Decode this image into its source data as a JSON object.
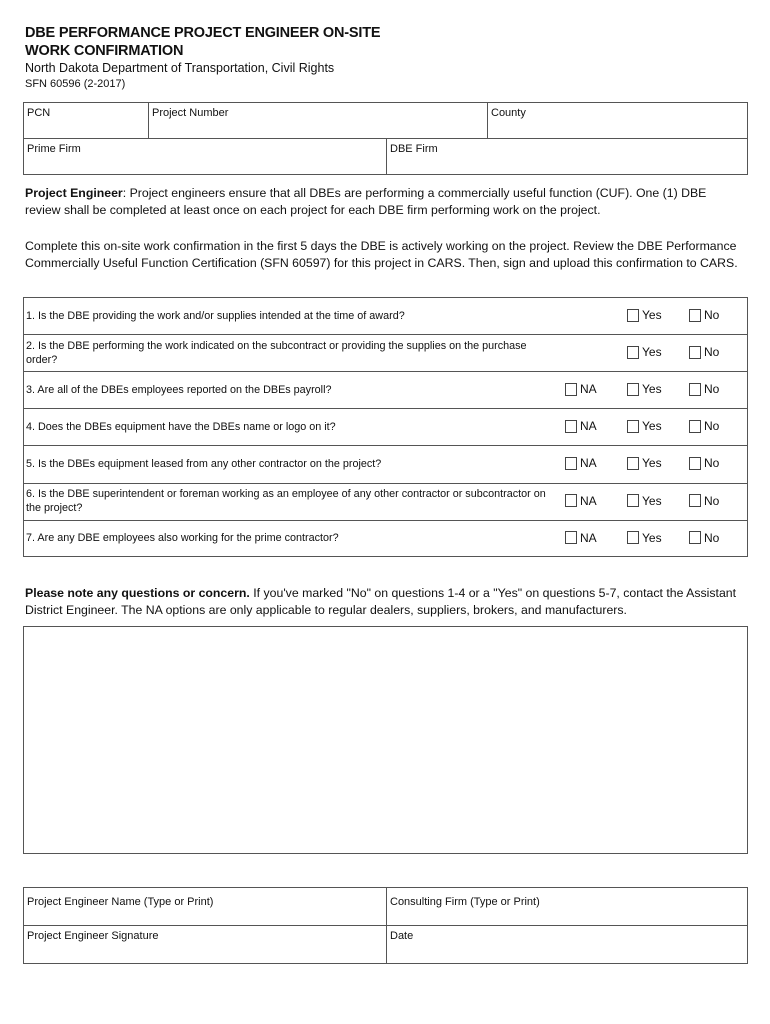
{
  "header": {
    "title_line1": "DBE PERFORMANCE PROJECT ENGINEER ON-SITE",
    "title_line2": "WORK CONFIRMATION",
    "agency": "North Dakota Department of Transportation, Civil Rights",
    "form_number": "SFN 60596 (2-2017)"
  },
  "project_fields": {
    "pcn": "PCN",
    "project_number": "Project Number",
    "county": "County",
    "prime_firm": "Prime Firm",
    "dbe_firm": "DBE Firm"
  },
  "instructions": {
    "p1_bold": "Project Engineer",
    "p1_rest": ": Project engineers ensure that all DBEs are performing a commercially useful function (CUF). One (1) DBE review shall be completed at least once on each project for each DBE firm performing work on the project.",
    "p2": "Complete this on-site work confirmation in the first 5 days the DBE is actively working on the project. Review the DBE Performance Commercially Useful Function Certification (SFN 60597) for this project in CARS. Then, sign and upload this confirmation to CARS."
  },
  "options": {
    "na": "NA",
    "yes": "Yes",
    "no": "No"
  },
  "questions": [
    {
      "text": "1. Is the DBE providing the work and/or supplies intended at the time of award?",
      "has_na": false
    },
    {
      "text": "2. Is the DBE performing the work indicated on the subcontract or providing the supplies on the purchase order?",
      "has_na": false
    },
    {
      "text": "3. Are all of the DBEs employees reported on the DBEs payroll?",
      "has_na": true
    },
    {
      "text": "4.  Does the DBEs equipment have the DBEs name or logo on it?",
      "has_na": true
    },
    {
      "text": "5. Is the DBEs equipment leased from any other contractor on the project?",
      "has_na": true
    },
    {
      "text": "6. Is the DBE superintendent or foreman working as an employee of any other contractor or subcontractor on the project?",
      "has_na": true
    },
    {
      "text": "7. Are any DBE employees also working for the prime contractor?",
      "has_na": true
    }
  ],
  "note": {
    "bold": "Please note any questions or concern.",
    "rest": " If you've marked \"No\" on questions 1-4 or a \"Yes\" on questions 5-7, contact the Assistant District Engineer. The NA options are only applicable to regular dealers, suppliers, brokers, and manufacturers."
  },
  "comments": {
    "value": ""
  },
  "signature_fields": {
    "engineer_name": "Project Engineer Name (Type or Print)",
    "consulting_firm": "Consulting Firm (Type or Print)",
    "signature": "Project Engineer Signature",
    "date": "Date"
  }
}
